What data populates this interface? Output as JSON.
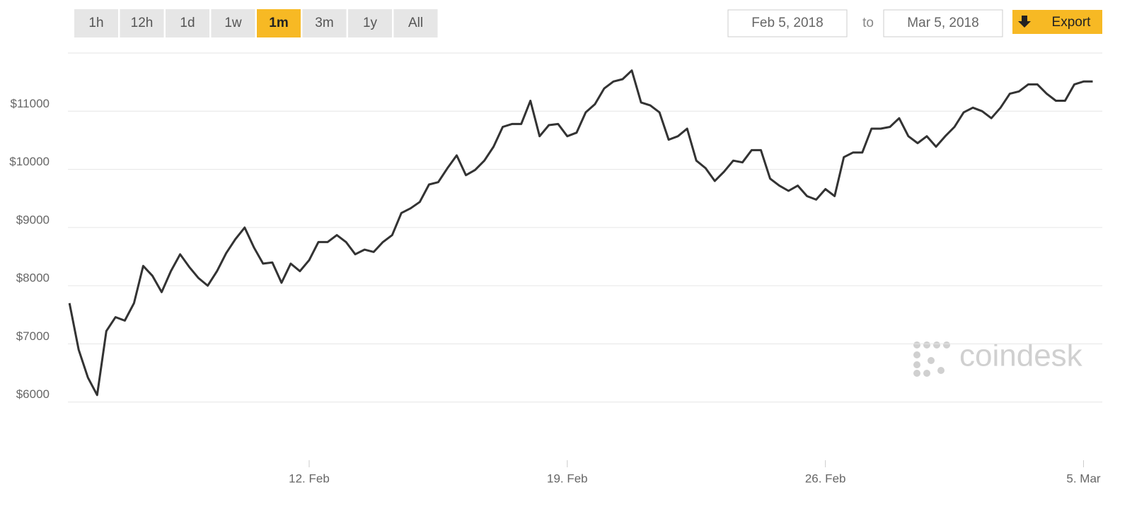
{
  "controls": {
    "range_buttons": [
      {
        "label": "1h",
        "active": false
      },
      {
        "label": "12h",
        "active": false
      },
      {
        "label": "1d",
        "active": false
      },
      {
        "label": "1w",
        "active": false
      },
      {
        "label": "1m",
        "active": true
      },
      {
        "label": "3m",
        "active": false
      },
      {
        "label": "1y",
        "active": false
      },
      {
        "label": "All",
        "active": false
      }
    ],
    "date_from": "Feb 5, 2018",
    "to_label": "to",
    "date_to": "Mar 5, 2018",
    "export_label": "Export"
  },
  "watermark": "coindesk",
  "chart_data": {
    "type": "line",
    "categories": [
      null,
      null,
      null,
      null,
      null,
      null,
      null,
      null,
      null,
      null,
      null,
      null,
      null,
      null,
      null,
      null,
      null,
      null,
      null,
      null,
      null,
      null,
      null,
      null,
      null,
      null,
      "12. Feb",
      null,
      null,
      null,
      null,
      null,
      null,
      null,
      null,
      null,
      null,
      null,
      null,
      null,
      null,
      null,
      null,
      null,
      null,
      null,
      null,
      null,
      null,
      null,
      null,
      null,
      null,
      null,
      "19. Feb",
      null,
      null,
      null,
      null,
      null,
      null,
      null,
      null,
      null,
      null,
      null,
      null,
      null,
      null,
      null,
      null,
      null,
      null,
      null,
      null,
      null,
      null,
      null,
      null,
      null,
      null,
      null,
      "26. Feb",
      null,
      null,
      null,
      null,
      null,
      null,
      null,
      null,
      null,
      null,
      null,
      null,
      null,
      null,
      null,
      null,
      null,
      null,
      null,
      null,
      null,
      null,
      null,
      null,
      null,
      null,
      null,
      "5. Mar",
      null
    ],
    "series": [
      {
        "color": "#333333",
        "values": [
          7700,
          6900,
          6420,
          6120,
          7220,
          7460,
          7400,
          7700,
          8340,
          8170,
          7890,
          8250,
          8540,
          8320,
          8130,
          8000,
          8250,
          8560,
          8800,
          9000,
          8660,
          8380,
          8400,
          8050,
          8380,
          8250,
          8440,
          8750,
          8750,
          8870,
          8750,
          8540,
          8620,
          8580,
          8750,
          8870,
          9250,
          9330,
          9440,
          9740,
          9780,
          10020,
          10240,
          9900,
          9990,
          10150,
          10390,
          10730,
          10780,
          10780,
          11180,
          10570,
          10760,
          10780,
          10570,
          10630,
          10980,
          11120,
          11390,
          11510,
          11550,
          11700,
          11150,
          11100,
          10980,
          10510,
          10570,
          10700,
          10150,
          10020,
          9800,
          9960,
          10150,
          10120,
          10330,
          10330,
          9840,
          9720,
          9630,
          9720,
          9540,
          9480,
          9660,
          9540,
          10210,
          10290,
          10290,
          10700,
          10700,
          10730,
          10880,
          10570,
          10450,
          10570,
          10390,
          10570,
          10730,
          10980,
          11060,
          11000,
          10880,
          11060,
          11300,
          11340,
          11460,
          11460,
          11300,
          11180,
          11180,
          11460,
          11510,
          11510
        ]
      }
    ],
    "ylim": [
      5000,
      12000
    ],
    "yticks": [
      {
        "value": 6000,
        "label": "$6000"
      },
      {
        "value": 7000,
        "label": "$7000"
      },
      {
        "value": 8000,
        "label": "$8000"
      },
      {
        "value": 9000,
        "label": "$9000"
      },
      {
        "value": 10000,
        "label": "$10000"
      },
      {
        "value": 11000,
        "label": "$11000"
      }
    ],
    "grid": true
  }
}
